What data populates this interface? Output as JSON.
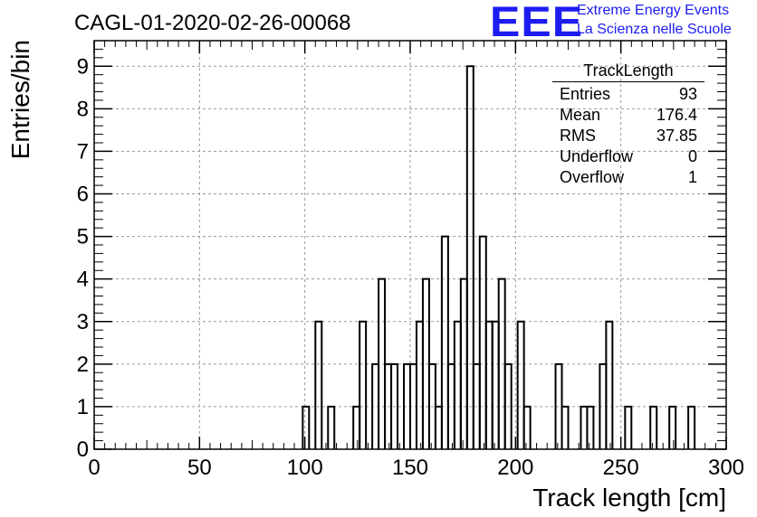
{
  "header": {
    "title": "CAGL-01-2020-02-26-00068",
    "logo": {
      "mark": "EEE",
      "line1": "Extreme Energy Events",
      "line2": "La Scienza nelle Scuole",
      "color": "#1c1cf0"
    }
  },
  "stats": {
    "title": "TrackLength",
    "rows": [
      {
        "label": "Entries",
        "value": "93"
      },
      {
        "label": "Mean",
        "value": "176.4"
      },
      {
        "label": "RMS",
        "value": "37.85"
      },
      {
        "label": "Underflow",
        "value": "0"
      },
      {
        "label": "Overflow",
        "value": "1"
      }
    ]
  },
  "chart_data": {
    "type": "bar",
    "style": "step-histogram",
    "xlabel": "Track length [cm]",
    "ylabel": "Entries/bin",
    "xlim": [
      0,
      300
    ],
    "ylim": [
      0,
      9.6
    ],
    "bin_width": 3,
    "grid": true,
    "x_ticks": [
      0,
      50,
      100,
      150,
      200,
      250,
      300
    ],
    "y_ticks": [
      0,
      1,
      2,
      3,
      4,
      5,
      6,
      7,
      8,
      9
    ],
    "bins": [
      {
        "x": 99,
        "count": 1
      },
      {
        "x": 105,
        "count": 3
      },
      {
        "x": 111,
        "count": 1
      },
      {
        "x": 123,
        "count": 1
      },
      {
        "x": 126,
        "count": 3
      },
      {
        "x": 132,
        "count": 2
      },
      {
        "x": 135,
        "count": 4
      },
      {
        "x": 138,
        "count": 2
      },
      {
        "x": 141,
        "count": 2
      },
      {
        "x": 147,
        "count": 2
      },
      {
        "x": 150,
        "count": 2
      },
      {
        "x": 153,
        "count": 3
      },
      {
        "x": 156,
        "count": 4
      },
      {
        "x": 159,
        "count": 2
      },
      {
        "x": 162,
        "count": 1
      },
      {
        "x": 165,
        "count": 5
      },
      {
        "x": 168,
        "count": 2
      },
      {
        "x": 171,
        "count": 3
      },
      {
        "x": 174,
        "count": 4
      },
      {
        "x": 177,
        "count": 9
      },
      {
        "x": 180,
        "count": 2
      },
      {
        "x": 183,
        "count": 5
      },
      {
        "x": 186,
        "count": 3
      },
      {
        "x": 189,
        "count": 3
      },
      {
        "x": 192,
        "count": 4
      },
      {
        "x": 195,
        "count": 2
      },
      {
        "x": 201,
        "count": 3
      },
      {
        "x": 204,
        "count": 1
      },
      {
        "x": 219,
        "count": 2
      },
      {
        "x": 222,
        "count": 1
      },
      {
        "x": 231,
        "count": 1
      },
      {
        "x": 234,
        "count": 1
      },
      {
        "x": 240,
        "count": 2
      },
      {
        "x": 243,
        "count": 3
      },
      {
        "x": 252,
        "count": 1
      },
      {
        "x": 264,
        "count": 1
      },
      {
        "x": 273,
        "count": 1
      },
      {
        "x": 282,
        "count": 1
      }
    ]
  }
}
